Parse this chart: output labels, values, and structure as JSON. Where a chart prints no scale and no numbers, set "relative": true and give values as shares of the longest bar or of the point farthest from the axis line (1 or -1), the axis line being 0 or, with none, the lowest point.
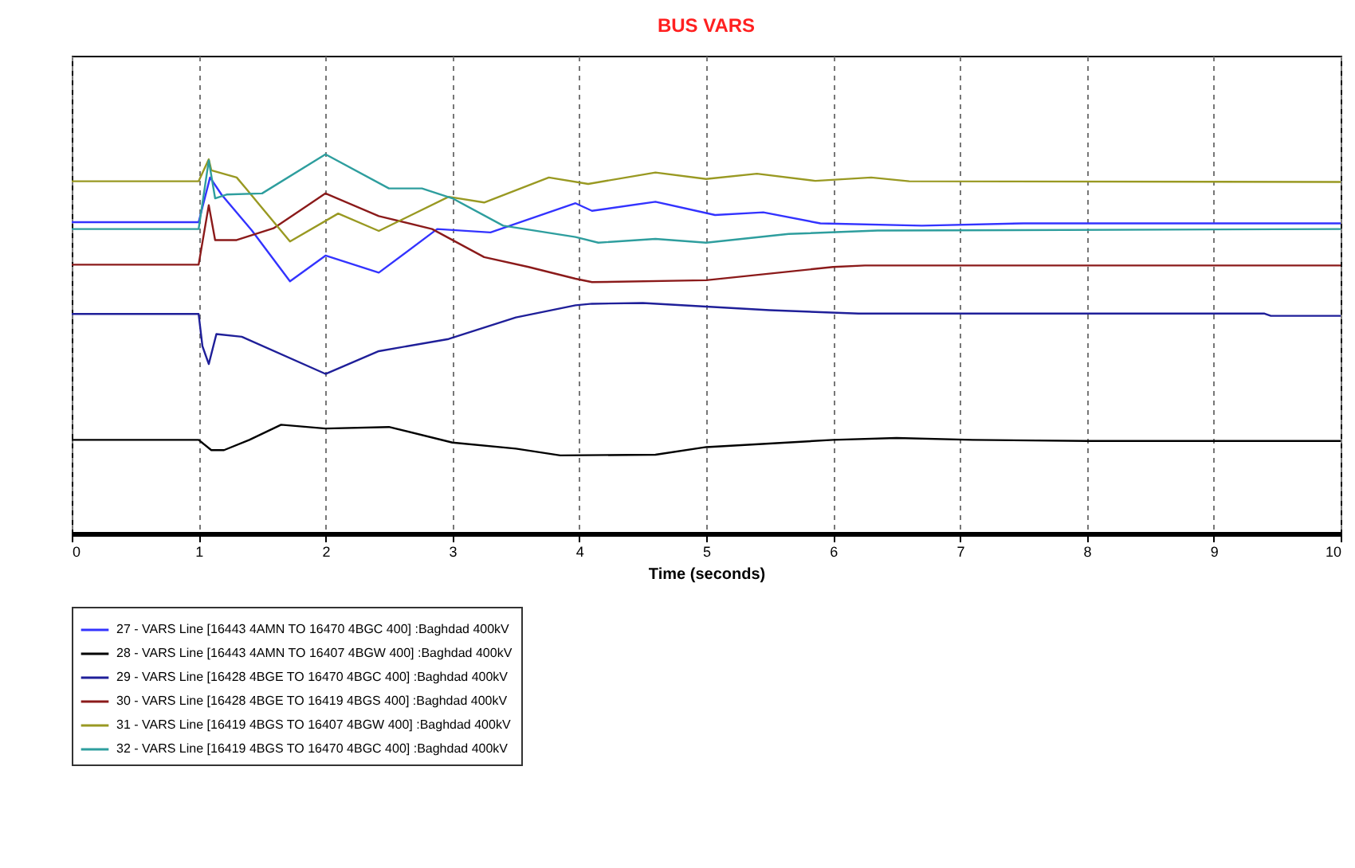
{
  "chart_data": {
    "type": "line",
    "title": "BUS VARS",
    "xlabel": "Time (seconds)",
    "relative": true,
    "xlim": [
      0,
      10
    ],
    "xticks": [
      0,
      1,
      2,
      3,
      4,
      5,
      6,
      7,
      8,
      9,
      10
    ],
    "grid": "x",
    "legend": "bottom",
    "marker": "none",
    "line_style": "solid",
    "series": [
      {
        "name": "27 - VARS Line [16443 4AMN TO 16470 4BGC 400] :Baghdad 400kV",
        "color": "#3333ff",
        "x": [
          0,
          1,
          1.09,
          1.18,
          1.42,
          1.72,
          2.0,
          2.42,
          2.88,
          3.3,
          3.97,
          4.1,
          4.6,
          5.07,
          5.45,
          5.9,
          6.7,
          7.5,
          10
        ],
        "values": [
          0.821,
          0.821,
          0.939,
          0.894,
          0.799,
          0.665,
          0.733,
          0.688,
          0.803,
          0.794,
          0.871,
          0.851,
          0.875,
          0.84,
          0.847,
          0.818,
          0.812,
          0.818,
          0.818
        ]
      },
      {
        "name": "28 - VARS Line [16443 4AMN TO 16407 4BGW 400] :Baghdad 400kV",
        "color": "#000000",
        "x": [
          0,
          1,
          1.1,
          1.2,
          1.4,
          1.65,
          2.0,
          2.5,
          3.0,
          3.5,
          3.85,
          4.6,
          5.0,
          6.0,
          6.5,
          7.1,
          8.0,
          10
        ],
        "values": [
          0.247,
          0.247,
          0.22,
          0.22,
          0.247,
          0.287,
          0.277,
          0.281,
          0.24,
          0.224,
          0.206,
          0.208,
          0.228,
          0.247,
          0.252,
          0.247,
          0.244,
          0.244
        ]
      },
      {
        "name": "29 - VARS Line [16428 4BGE TO 16470 4BGC 400] :Baghdad 400kV",
        "color": "#1f1f99",
        "x": [
          0,
          1,
          1.03,
          1.08,
          1.14,
          1.34,
          2.0,
          2.42,
          2.97,
          3.5,
          3.97,
          4.1,
          4.5,
          5.5,
          6.2,
          9.4,
          9.45,
          10
        ],
        "values": [
          0.579,
          0.579,
          0.494,
          0.447,
          0.526,
          0.519,
          0.421,
          0.481,
          0.513,
          0.57,
          0.602,
          0.606,
          0.608,
          0.589,
          0.58,
          0.58,
          0.574,
          0.574
        ]
      },
      {
        "name": "30 - VARS Line [16428 4BGE TO 16419 4BGS 400] :Baghdad 400kV",
        "color": "#8b1a1a",
        "x": [
          0,
          1,
          1.08,
          1.13,
          1.3,
          1.59,
          2.0,
          2.42,
          2.84,
          3.25,
          3.6,
          3.97,
          4.1,
          5.0,
          6.0,
          6.25,
          10
        ],
        "values": [
          0.709,
          0.709,
          0.866,
          0.774,
          0.774,
          0.805,
          0.897,
          0.837,
          0.803,
          0.729,
          0.703,
          0.672,
          0.663,
          0.668,
          0.703,
          0.707,
          0.707
        ]
      },
      {
        "name": "31 - VARS Line [16419 4BGS TO 16407 4BGW 400] :Baghdad 400kV",
        "color": "#999922",
        "x": [
          0,
          1,
          1.08,
          1.1,
          1.3,
          1.38,
          1.72,
          2.1,
          2.42,
          2.97,
          3.25,
          3.76,
          4.07,
          4.6,
          5.0,
          5.4,
          5.86,
          6.3,
          6.6,
          10
        ],
        "values": [
          0.929,
          0.929,
          0.987,
          0.958,
          0.939,
          0.907,
          0.77,
          0.844,
          0.798,
          0.888,
          0.873,
          0.939,
          0.922,
          0.952,
          0.935,
          0.949,
          0.93,
          0.939,
          0.929,
          0.927
        ]
      },
      {
        "name": "32 - VARS Line [16419 4BGS TO 16470 4BGC 400] :Baghdad 400kV",
        "color": "#2e9e9e",
        "x": [
          0,
          1,
          1.08,
          1.13,
          1.22,
          1.5,
          2.0,
          2.5,
          2.76,
          3.0,
          3.4,
          3.97,
          4.15,
          4.6,
          5.0,
          5.65,
          6.35,
          10
        ],
        "values": [
          0.803,
          0.803,
          0.984,
          0.884,
          0.894,
          0.897,
          1,
          0.91,
          0.91,
          0.884,
          0.812,
          0.782,
          0.767,
          0.777,
          0.767,
          0.79,
          0.799,
          0.803
        ]
      }
    ]
  }
}
